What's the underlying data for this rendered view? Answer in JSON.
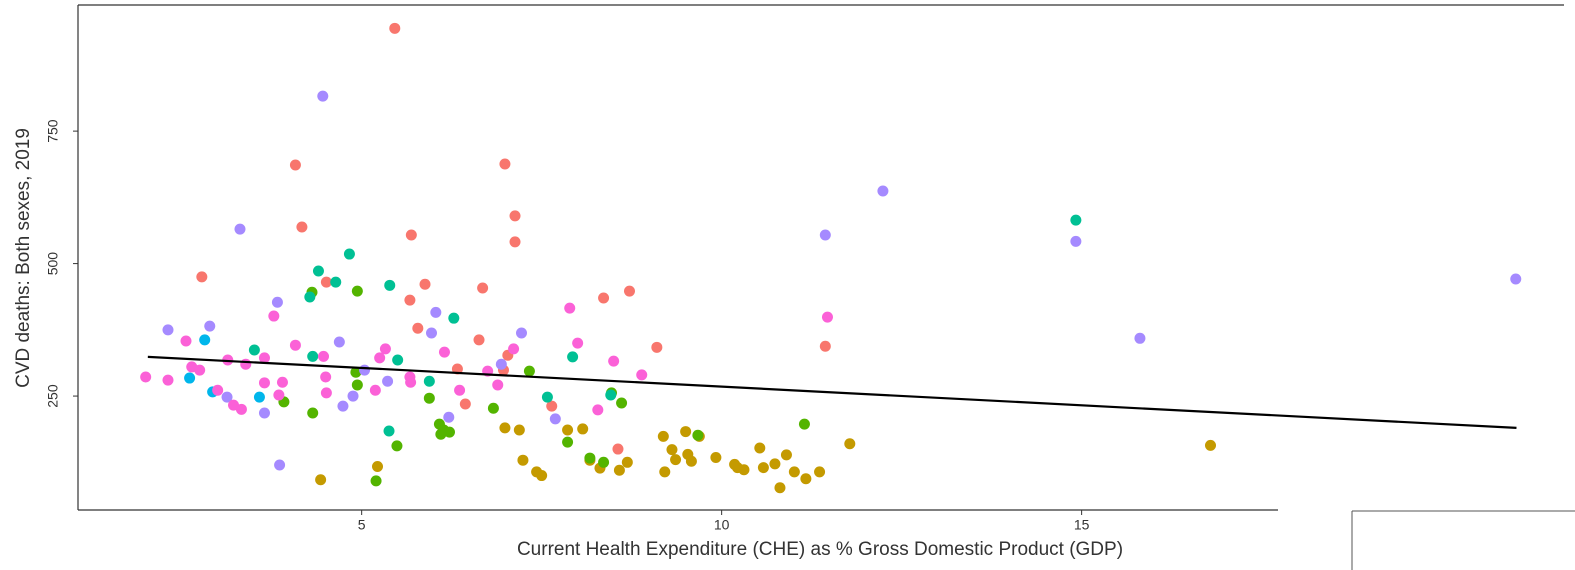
{
  "chart_data": {
    "type": "scatter",
    "x_label": "Current Health Expenditure (CHE) as % Gross Domestic Product (GDP)",
    "y_label": "CVD deaths: Both sexes, 2019",
    "xlim": [
      1.06,
      21.7
    ],
    "ylim": [
      35,
      988
    ],
    "xticks": [
      5,
      10,
      15
    ],
    "yticks": [
      250,
      500,
      750
    ],
    "series": [
      {
        "color": "#F8766D",
        "x": [
          5.46,
          4.08,
          6.99,
          4.17,
          7.13,
          7.13,
          5.69,
          2.78,
          4.51,
          5.67,
          5.88,
          5.78,
          8.36,
          8.72,
          6.68,
          9.1,
          11.44,
          6.63,
          7.03,
          6.97,
          6.33,
          6.44,
          7.64,
          8.56
        ],
        "values": [
          944,
          686,
          688,
          569,
          590,
          541,
          554,
          475,
          465,
          431,
          461,
          378,
          435,
          448,
          454,
          342,
          344,
          356,
          327,
          299,
          301,
          235,
          231,
          150
        ]
      },
      {
        "color": "#C49A00",
        "x": [
          6.99,
          7.19,
          7.24,
          7.43,
          7.5,
          7.86,
          8.17,
          8.31,
          8.58,
          8.69,
          9.19,
          9.21,
          9.31,
          9.36,
          9.5,
          9.53,
          9.58,
          9.69,
          9.92,
          10.18,
          10.22,
          10.31,
          10.53,
          10.58,
          10.74,
          10.9,
          11.01,
          10.81,
          11.17,
          11.36,
          11.78,
          16.79,
          5.22,
          4.43,
          8.07
        ],
        "values": [
          190,
          186,
          129,
          107,
          100,
          186,
          129,
          114,
          110,
          125,
          174,
          107,
          149,
          130,
          183,
          140,
          127,
          174,
          134,
          121,
          115,
          111,
          152,
          115,
          122,
          139,
          107,
          77,
          94,
          107,
          160,
          157,
          117,
          92,
          188
        ]
      },
      {
        "color": "#53B400",
        "x": [
          3.92,
          4.31,
          4.32,
          4.94,
          4.94,
          4.92,
          5.49,
          5.2,
          5.94,
          6.08,
          6.14,
          6.22,
          6.1,
          6.83,
          7.33,
          7.86,
          8.17,
          8.36,
          8.47,
          8.61,
          9.67,
          11.15
        ],
        "values": [
          239,
          446,
          218,
          448,
          271,
          295,
          156,
          90,
          246,
          197,
          186,
          182,
          178,
          227,
          297,
          163,
          133,
          125,
          256,
          237,
          176,
          197
        ]
      },
      {
        "color": "#00C094",
        "x": [
          4.83,
          4.4,
          4.64,
          5.39,
          4.28,
          3.51,
          4.32,
          5.5,
          5.94,
          6.28,
          7.93,
          7.58,
          8.46,
          14.92,
          5.38
        ],
        "values": [
          518,
          486,
          465,
          459,
          437,
          337,
          325,
          318,
          278,
          397,
          324,
          248,
          252,
          582,
          184
        ]
      },
      {
        "color": "#00B6EB",
        "x": [
          2.82,
          2.61,
          2.93,
          3.58
        ],
        "values": [
          356,
          284,
          258,
          248
        ]
      },
      {
        "color": "#A58AFF",
        "x": [
          4.46,
          3.31,
          12.24,
          11.44,
          14.92,
          21.03,
          15.81,
          3.83,
          6.03,
          5.97,
          7.22,
          4.69,
          2.31,
          2.89,
          6.94,
          5.04,
          4.74,
          4.88,
          5.36,
          6.21,
          7.69,
          3.65,
          3.86,
          3.13
        ],
        "values": [
          816,
          565,
          637,
          554,
          542,
          471,
          359,
          427,
          408,
          369,
          369,
          352,
          375,
          382,
          310,
          299,
          231,
          250,
          278,
          210,
          207,
          218,
          120,
          248
        ]
      },
      {
        "color": "#FB61D7",
        "x": [
          2.0,
          2.31,
          2.56,
          2.64,
          2.75,
          3.0,
          3.14,
          3.22,
          3.33,
          3.39,
          3.65,
          3.65,
          3.78,
          3.85,
          3.9,
          4.08,
          4.47,
          4.5,
          4.51,
          5.25,
          5.33,
          5.19,
          5.67,
          5.68,
          6.15,
          6.36,
          6.89,
          7.11,
          7.89,
          8.0,
          8.28,
          8.5,
          8.89,
          11.47,
          6.75
        ],
        "values": [
          286,
          280,
          354,
          305,
          299,
          261,
          318,
          233,
          225,
          310,
          322,
          275,
          401,
          252,
          276,
          346,
          325,
          286,
          256,
          322,
          339,
          261,
          286,
          276,
          333,
          261,
          271,
          339,
          416,
          350,
          224,
          316,
          290,
          399,
          297
        ]
      }
    ],
    "trend_line": {
      "color": "#000000",
      "x": [
        2.03,
        21.04
      ],
      "values": [
        324,
        190
      ]
    }
  }
}
